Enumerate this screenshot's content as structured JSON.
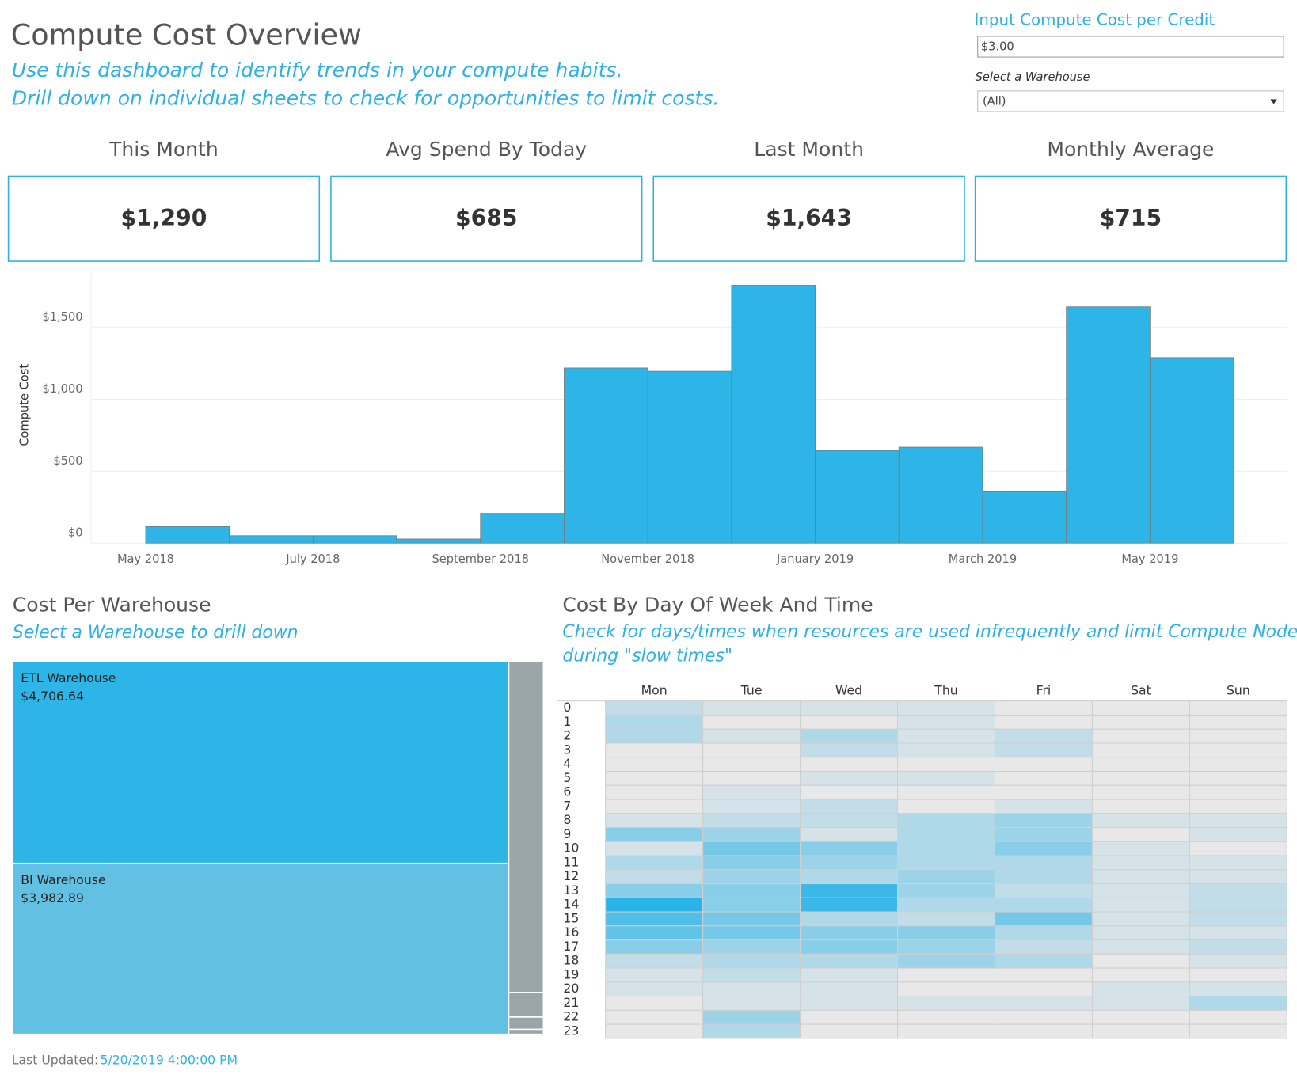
{
  "header": {
    "title": "Compute Cost Overview",
    "subtitle": [
      "Use this dashboard to identify trends in your compute habits.",
      "Drill down on individual sheets to check for opportunities to limit costs."
    ]
  },
  "controls": {
    "cost_label": "Input Compute Cost per Credit",
    "cost_value": "$3.00",
    "warehouse_label": "Select a Warehouse",
    "warehouse_value": "(All)"
  },
  "kpis": [
    {
      "label": "This Month",
      "value": "$1,290"
    },
    {
      "label": "Avg Spend By Today",
      "value": "$685"
    },
    {
      "label": "Last Month",
      "value": "$1,643"
    },
    {
      "label": "Monthly Average",
      "value": "$715"
    }
  ],
  "chart_data": [
    {
      "type": "bar",
      "y_label": "Compute Cost",
      "categories": [
        "May 2018",
        null,
        "July 2018",
        null,
        "September 2018",
        null,
        "November 2018",
        null,
        "January 2019",
        null,
        "March 2019",
        null,
        "May 2019"
      ],
      "values": [
        115,
        52,
        52,
        29,
        207,
        1218,
        1195,
        1793,
        644,
        667,
        362,
        1643,
        1290
      ],
      "color": "#2db5e8",
      "ylim": [
        0,
        1880
      ],
      "yticks": [
        {
          "value": 0,
          "label": "$0"
        },
        {
          "value": 500,
          "label": "$500"
        },
        {
          "value": 1000,
          "label": "$1,000"
        },
        {
          "value": 1500,
          "label": "$1,500"
        }
      ],
      "grid": true
    },
    {
      "type": "treemap",
      "title": "Cost Per Warehouse",
      "subtitle": "Select a Warehouse to drill down",
      "categories": [
        "ETL Warehouse",
        "BI Warehouse",
        null,
        null,
        null,
        null
      ],
      "values": [
        4706.64,
        3982.89,
        540,
        40,
        20,
        8
      ],
      "value_labels": [
        "$4,706.64",
        "$3,982.89",
        null,
        null,
        null,
        null
      ],
      "colors": [
        "#2db5e8",
        "#62c1e3",
        "#9aa5aa",
        "#9aa5aa",
        "#9aa5aa",
        "#9aa5aa"
      ]
    },
    {
      "type": "heatmap",
      "title": "Cost By Day Of Week And Time",
      "subtitle": [
        "Check for days/times when resources are used infrequently and limit Compute Nodes",
        "during \"slow times\""
      ],
      "categories": [
        "Mon",
        "Tue",
        "Wed",
        "Thu",
        "Fri",
        "Sat",
        "Sun"
      ],
      "rows": [
        "0",
        "1",
        "2",
        "3",
        "4",
        "5",
        "6",
        "7",
        "8",
        "9",
        "10",
        "11",
        "12",
        "13",
        "14",
        "15",
        "16",
        "17",
        "18",
        "19",
        "20",
        "21",
        "22",
        "23"
      ],
      "values": [
        [
          2,
          1,
          1,
          1,
          0,
          0,
          0
        ],
        [
          3,
          0,
          0,
          1,
          0,
          0,
          0
        ],
        [
          3,
          1,
          3,
          1,
          2,
          0,
          0
        ],
        [
          0,
          0,
          2,
          1,
          2,
          0,
          0
        ],
        [
          0,
          0,
          0,
          0,
          0,
          0,
          0
        ],
        [
          0,
          0,
          1,
          1,
          0,
          0,
          0
        ],
        [
          0,
          1,
          0,
          0,
          0,
          0,
          0
        ],
        [
          0,
          1,
          2,
          0,
          1,
          0,
          0
        ],
        [
          1,
          2,
          2,
          3,
          4,
          1,
          1
        ],
        [
          5,
          4,
          1,
          3,
          4,
          0,
          1
        ],
        [
          1,
          6,
          5,
          3,
          5,
          1,
          0
        ],
        [
          3,
          5,
          4,
          3,
          3,
          1,
          1
        ],
        [
          2,
          4,
          3,
          4,
          3,
          1,
          1
        ],
        [
          5,
          5,
          9,
          4,
          2,
          1,
          2
        ],
        [
          10,
          5,
          9,
          3,
          3,
          1,
          2
        ],
        [
          8,
          6,
          3,
          2,
          6,
          1,
          2
        ],
        [
          7,
          6,
          5,
          5,
          3,
          1,
          1
        ],
        [
          5,
          4,
          5,
          4,
          2,
          1,
          2
        ],
        [
          2,
          3,
          3,
          4,
          3,
          0,
          1
        ],
        [
          1,
          2,
          1,
          0,
          0,
          0,
          0
        ],
        [
          1,
          1,
          1,
          0,
          0,
          1,
          1
        ],
        [
          0,
          1,
          1,
          1,
          1,
          1,
          3
        ],
        [
          0,
          4,
          0,
          0,
          0,
          0,
          0
        ],
        [
          0,
          3,
          0,
          0,
          0,
          0,
          0
        ]
      ],
      "color_range": [
        "#e8e8e8",
        "#29b3e8"
      ],
      "colorlim": [
        0,
        10
      ]
    }
  ],
  "footer": {
    "label": "Last Updated:",
    "value": "5/20/2019 4:00:00 PM"
  }
}
